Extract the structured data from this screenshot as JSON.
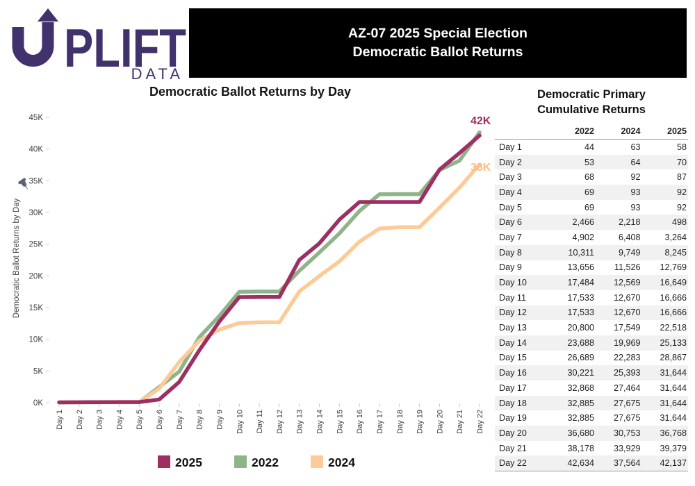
{
  "logo": {
    "brand": "UPLIFT",
    "sub": "DATA",
    "color": "#41316C"
  },
  "banner": {
    "line1": "AZ-07 2025 Special Election",
    "line2": "Democratic Ballot Returns",
    "bg": "#000000",
    "text_color": "#FFFFFF"
  },
  "chart": {
    "title": "Democratic Ballot Returns by Day",
    "legend": [
      {
        "label": "2025",
        "color": "#9E2F62"
      },
      {
        "label": "2022",
        "color": "#8FB48A"
      },
      {
        "label": "2024",
        "color": "#FCCB97"
      }
    ],
    "pin_icon_color": "#5A6372"
  },
  "chart_data": {
    "type": "line",
    "title": "Democratic Ballot Returns by Day",
    "xlabel": "",
    "ylabel": "Democratic Ballot Returns by Day",
    "ylim": [
      0,
      45000
    ],
    "yticks": [
      "0K",
      "5K",
      "10K",
      "15K",
      "20K",
      "25K",
      "30K",
      "35K",
      "40K",
      "45K"
    ],
    "grid": false,
    "legend_position": "bottom",
    "categories": [
      "Day 1",
      "Day 2",
      "Day 3",
      "Day 4",
      "Day 5",
      "Day 6",
      "Day 7",
      "Day 8",
      "Day 9",
      "Day 10",
      "Day 11",
      "Day 12",
      "Day 13",
      "Day 14",
      "Day 15",
      "Day 16",
      "Day 17",
      "Day 18",
      "Day 19",
      "Day 20",
      "Day 21",
      "Day 22"
    ],
    "series": [
      {
        "name": "2022",
        "color": "#8FB48A",
        "values": [
          44,
          53,
          68,
          69,
          69,
          2466,
          4902,
          10311,
          13656,
          17484,
          17533,
          17533,
          20800,
          23688,
          26689,
          30221,
          32868,
          32885,
          32885,
          36680,
          38178,
          42634
        ]
      },
      {
        "name": "2024",
        "color": "#FCCB97",
        "values": [
          63,
          64,
          92,
          93,
          93,
          2218,
          6408,
          9749,
          11526,
          12569,
          12670,
          12670,
          17549,
          19969,
          22283,
          25393,
          27464,
          27675,
          27675,
          30753,
          33929,
          37564
        ]
      },
      {
        "name": "2025",
        "color": "#9E2F62",
        "values": [
          58,
          70,
          87,
          92,
          92,
          498,
          3264,
          8245,
          12769,
          16649,
          16666,
          16666,
          22518,
          25133,
          28867,
          31644,
          31644,
          31644,
          31644,
          36768,
          39379,
          42137
        ]
      }
    ],
    "annotations": [
      {
        "label": "42K",
        "series": "2025",
        "color": "#9E2F62"
      },
      {
        "label": "38K",
        "series": "2024",
        "color": "#F7BE85"
      }
    ]
  },
  "table": {
    "title_line1": "Democratic Primary",
    "title_line2": "Cumulative Returns",
    "headers": [
      "",
      "2022",
      "2024",
      "2025"
    ],
    "stripe_color": "#F1F1F1",
    "rows": [
      [
        "Day 1",
        "44",
        "63",
        "58"
      ],
      [
        "Day 2",
        "53",
        "64",
        "70"
      ],
      [
        "Day 3",
        "68",
        "92",
        "87"
      ],
      [
        "Day 4",
        "69",
        "93",
        "92"
      ],
      [
        "Day 5",
        "69",
        "93",
        "92"
      ],
      [
        "Day 6",
        "2,466",
        "2,218",
        "498"
      ],
      [
        "Day 7",
        "4,902",
        "6,408",
        "3,264"
      ],
      [
        "Day 8",
        "10,311",
        "9,749",
        "8,245"
      ],
      [
        "Day 9",
        "13,656",
        "11,526",
        "12,769"
      ],
      [
        "Day 10",
        "17,484",
        "12,569",
        "16,649"
      ],
      [
        "Day 11",
        "17,533",
        "12,670",
        "16,666"
      ],
      [
        "Day 12",
        "17,533",
        "12,670",
        "16,666"
      ],
      [
        "Day 13",
        "20,800",
        "17,549",
        "22,518"
      ],
      [
        "Day 14",
        "23,688",
        "19,969",
        "25,133"
      ],
      [
        "Day 15",
        "26,689",
        "22,283",
        "28,867"
      ],
      [
        "Day 16",
        "30,221",
        "25,393",
        "31,644"
      ],
      [
        "Day 17",
        "32,868",
        "27,464",
        "31,644"
      ],
      [
        "Day 18",
        "32,885",
        "27,675",
        "31,644"
      ],
      [
        "Day 19",
        "32,885",
        "27,675",
        "31,644"
      ],
      [
        "Day 20",
        "36,680",
        "30,753",
        "36,768"
      ],
      [
        "Day 21",
        "38,178",
        "33,929",
        "39,379"
      ],
      [
        "Day 22",
        "42,634",
        "37,564",
        "42,137"
      ]
    ]
  }
}
